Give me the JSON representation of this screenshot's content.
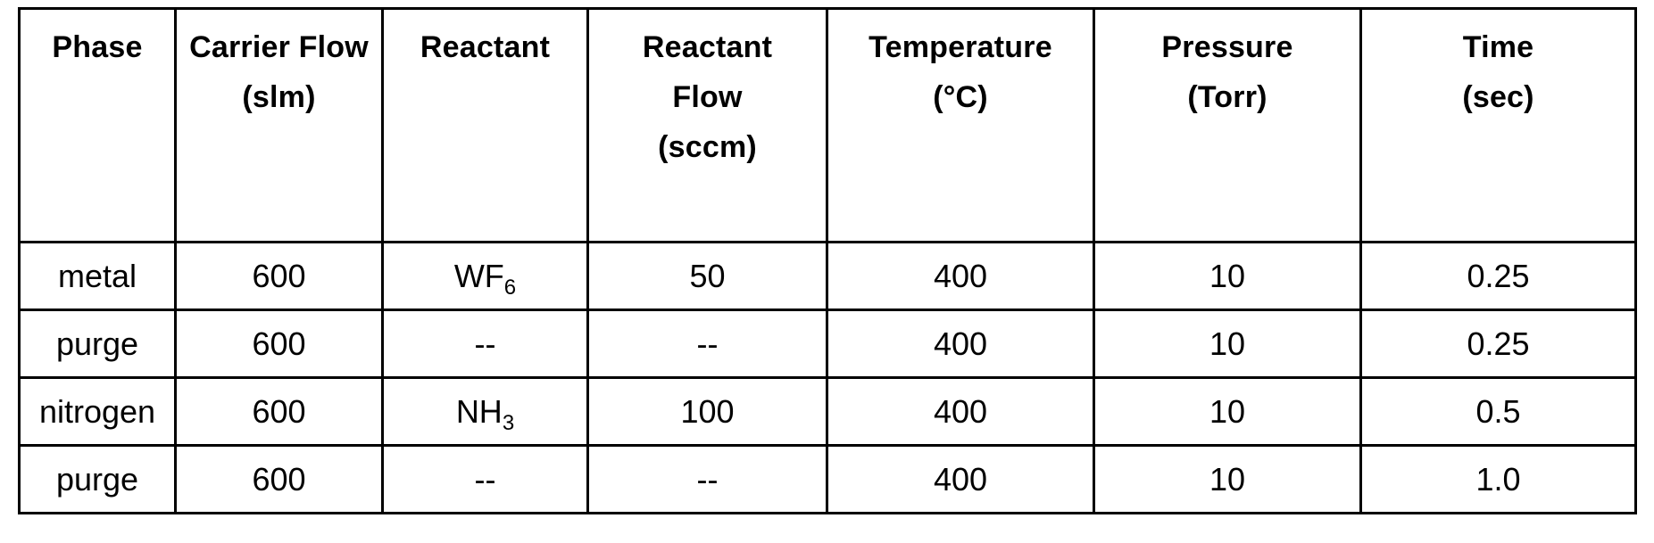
{
  "table": {
    "headers": [
      {
        "key": "phase",
        "lines": [
          "Phase"
        ]
      },
      {
        "key": "carrier_flow",
        "lines": [
          "Carrier Flow",
          "(slm)"
        ]
      },
      {
        "key": "reactant",
        "lines": [
          "Reactant"
        ]
      },
      {
        "key": "reactant_flow",
        "lines": [
          "Reactant",
          "Flow",
          "(sccm)"
        ]
      },
      {
        "key": "temperature",
        "lines": [
          "Temperature",
          "(°C)"
        ]
      },
      {
        "key": "pressure",
        "lines": [
          "Pressure",
          "(Torr)"
        ]
      },
      {
        "key": "time",
        "lines": [
          "Time",
          "(sec)"
        ]
      }
    ],
    "rows": [
      {
        "phase": "metal",
        "carrier_flow": "600",
        "reactant": {
          "base": "WF",
          "sub": "6"
        },
        "reactant_flow": "50",
        "temperature": "400",
        "pressure": "10",
        "time": "0.25"
      },
      {
        "phase": "purge",
        "carrier_flow": "600",
        "reactant": {
          "base": "--",
          "sub": ""
        },
        "reactant_flow": "--",
        "temperature": "400",
        "pressure": "10",
        "time": "0.25"
      },
      {
        "phase": "nitrogen",
        "carrier_flow": "600",
        "reactant": {
          "base": "NH",
          "sub": "3"
        },
        "reactant_flow": "100",
        "temperature": "400",
        "pressure": "10",
        "time": "0.5"
      },
      {
        "phase": "purge",
        "carrier_flow": "600",
        "reactant": {
          "base": "--",
          "sub": ""
        },
        "reactant_flow": "--",
        "temperature": "400",
        "pressure": "10",
        "time": "1.0"
      }
    ]
  }
}
